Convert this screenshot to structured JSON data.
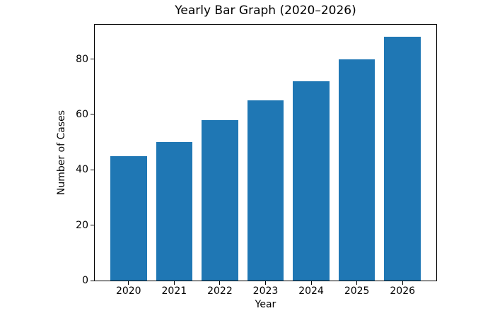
{
  "chart_data": {
    "type": "bar",
    "title": "Yearly Bar Graph (2020–2026)",
    "xlabel": "Year",
    "ylabel": "Number of Cases",
    "categories": [
      "2020",
      "2021",
      "2022",
      "2023",
      "2024",
      "2025",
      "2026"
    ],
    "values": [
      45,
      50,
      58,
      65,
      72,
      80,
      88
    ],
    "ylim": [
      0,
      92.4
    ],
    "yticks": [
      0,
      20,
      40,
      60,
      80
    ],
    "bar_color": "#1f77b4",
    "bar_width_units": 0.8,
    "x_margin_units": 0.34,
    "grid": false,
    "legend": "none",
    "spine_color": "#000000",
    "background_color": "#ffffff"
  }
}
